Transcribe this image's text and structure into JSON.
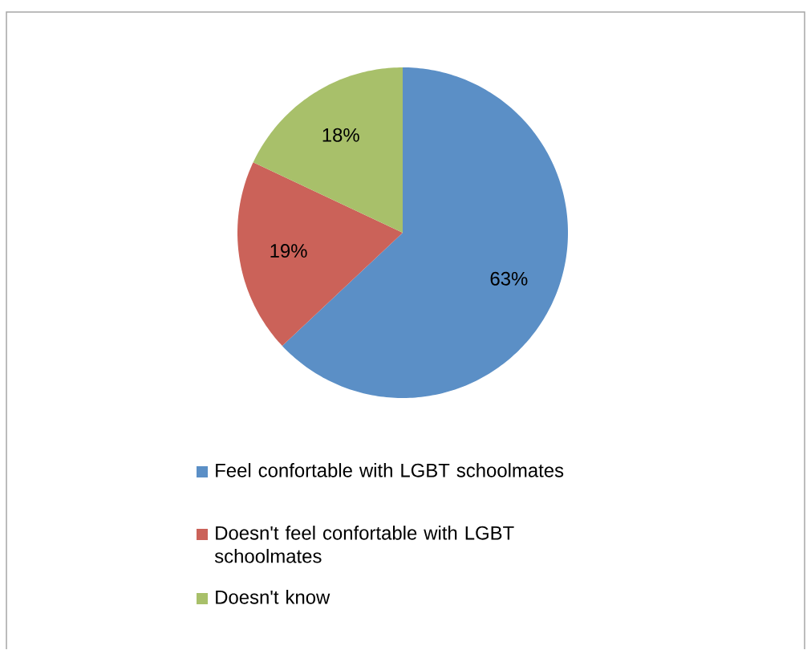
{
  "chart_data": {
    "type": "pie",
    "categories": [
      "Feel confortable with LGBT schoolmates",
      "Doesn't feel confortable with LGBT schoolmates",
      "Doesn't know"
    ],
    "values": [
      63,
      19,
      18
    ],
    "colors": [
      "#5b8fc6",
      "#cb6259",
      "#a8c06a"
    ],
    "value_labels": [
      "63%",
      "19%",
      "18%"
    ],
    "legend": "bottom"
  }
}
